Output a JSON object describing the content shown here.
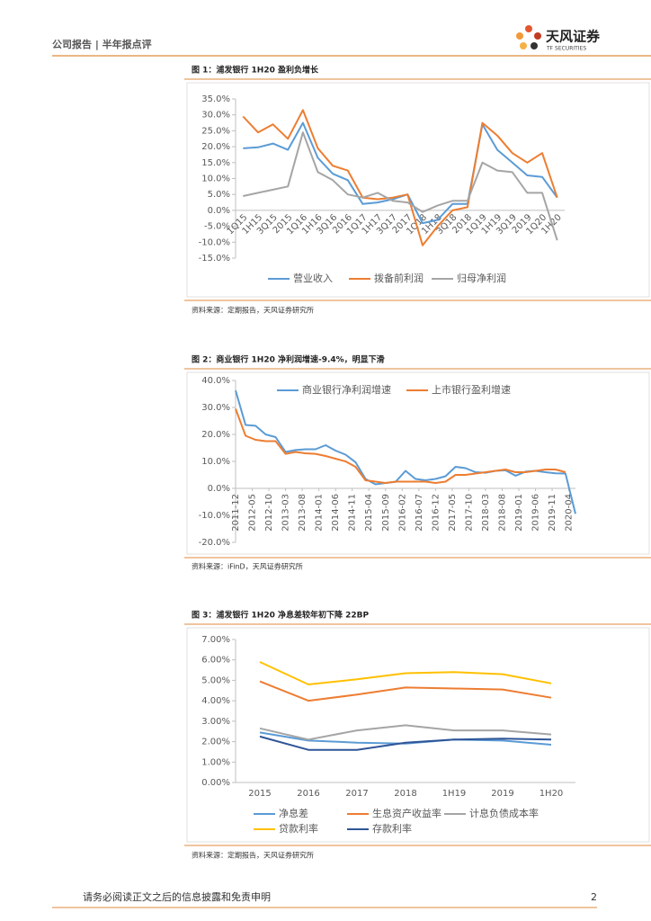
{
  "header": {
    "left": "公司报告 | 半年报点评",
    "brand": "天风证券",
    "brand_en": "TF SECURITIES"
  },
  "chart_data": [
    {
      "type": "line",
      "title": "图 1：浦发银行 1H20 盈利负增长",
      "source": "资料来源：定期报告，天风证券研究所",
      "categories": [
        "1Q15",
        "1H15",
        "3Q15",
        "2015",
        "1Q16",
        "1H16",
        "3Q16",
        "2016",
        "1Q17",
        "1H17",
        "3Q17",
        "2017",
        "1Q18",
        "1H18",
        "3Q18",
        "2018",
        "1Q19",
        "1H19",
        "3Q19",
        "2019",
        "1Q20",
        "1H20"
      ],
      "series": [
        {
          "name": "营业收入",
          "color": "#5b9bd5",
          "values": [
            19.5,
            19.8,
            21,
            19,
            27.5,
            16.5,
            11.5,
            9.5,
            2,
            2.5,
            3.5,
            5,
            -4,
            -3,
            2,
            2,
            27,
            19,
            15,
            11,
            10.5,
            4
          ]
        },
        {
          "name": "拨备前利润",
          "color": "#ed7d31",
          "values": [
            29.5,
            24.5,
            27,
            22.5,
            31.5,
            19.5,
            14,
            12.5,
            4,
            3.5,
            4,
            5,
            -11,
            -5,
            0,
            1,
            27.5,
            23.5,
            18,
            15,
            18,
            4
          ]
        },
        {
          "name": "归母净利润",
          "color": "#a5a5a5",
          "values": [
            4.5,
            5.5,
            6.5,
            7.5,
            24.5,
            12,
            9.5,
            5,
            4,
            5.5,
            3,
            2.5,
            -0.5,
            1.5,
            3,
            3,
            15,
            12.5,
            12,
            5.5,
            5.5,
            -9.4
          ]
        }
      ],
      "ylim": [
        -15,
        35
      ],
      "yticks": [
        {
          "value": -15,
          "label": "-15.0%"
        },
        {
          "value": -10,
          "label": "-10.0%"
        },
        {
          "value": -5,
          "label": "-5.0%"
        },
        {
          "value": 0,
          "label": "0.0%"
        },
        {
          "value": 5,
          "label": "5.0%"
        },
        {
          "value": 10,
          "label": "10.0%"
        },
        {
          "value": 15,
          "label": "15.0%"
        },
        {
          "value": 20,
          "label": "20.0%"
        },
        {
          "value": 25,
          "label": "25.0%"
        },
        {
          "value": 30,
          "label": "30.0%"
        },
        {
          "value": 35,
          "label": "35.0%"
        }
      ],
      "legend": "bottom",
      "grid": false
    },
    {
      "type": "line",
      "title": "图 2：商业银行 1H20 净利润增速-9.4%，明显下滑",
      "source": "资料来源：iFinD，天风证券研究所",
      "x": [
        "2011-12",
        "2012-03",
        "2012-06",
        "2012-09",
        "2012-12",
        "2013-03",
        "2013-06",
        "2013-09",
        "2013-12",
        "2014-03",
        "2014-06",
        "2014-09",
        "2014-12",
        "2015-03",
        "2015-06",
        "2015-09",
        "2015-12",
        "2016-03",
        "2016-06",
        "2016-09",
        "2016-12",
        "2017-03",
        "2017-06",
        "2017-09",
        "2017-12",
        "2018-03",
        "2018-06",
        "2018-09",
        "2018-12",
        "2019-03",
        "2019-06",
        "2019-09",
        "2019-12",
        "2020-03",
        "2020-06"
      ],
      "xlim": [
        "2011-12",
        "2020-06"
      ],
      "xticks": [
        "2011-12",
        "2012-05",
        "2012-10",
        "2013-03",
        "2013-08",
        "2014-01",
        "2014-06",
        "2014-11",
        "2015-04",
        "2015-09",
        "2016-02",
        "2016-07",
        "2016-12",
        "2017-05",
        "2017-10",
        "2018-03",
        "2018-08",
        "2019-01",
        "2019-06",
        "2019-11",
        "2020-04"
      ],
      "series": [
        {
          "name": "商业银行净利润增速",
          "color": "#5b9bd5",
          "values": [
            36.3,
            23.5,
            23.2,
            20,
            19,
            13.5,
            14.2,
            14.5,
            14.5,
            16,
            14,
            12.5,
            9.7,
            3.5,
            1.5,
            2,
            2.4,
            6.5,
            3.5,
            3,
            3.5,
            4.5,
            8,
            7.5,
            6,
            5.8,
            6.5,
            6.7,
            4.7,
            6.2,
            6.5,
            6,
            5.6,
            5.5,
            -9.4
          ]
        },
        {
          "name": "上市银行盈利增速",
          "color": "#ed7d31",
          "values": [
            29.5,
            19.5,
            18,
            17.5,
            17.5,
            12.8,
            13.5,
            13,
            12.8,
            12,
            11,
            10,
            8,
            3,
            2.5,
            2,
            2.5,
            2.5,
            2.5,
            2.5,
            2,
            2.5,
            5,
            5,
            5.5,
            6,
            6.5,
            7,
            6,
            6,
            6.5,
            7,
            7,
            6,
            null
          ]
        }
      ],
      "ylim": [
        -20,
        40
      ],
      "yticks": [
        {
          "value": -20,
          "label": "-20.0%"
        },
        {
          "value": -10,
          "label": "-10.0%"
        },
        {
          "value": 0,
          "label": "0.0%"
        },
        {
          "value": 10,
          "label": "10.0%"
        },
        {
          "value": 20,
          "label": "20.0%"
        },
        {
          "value": 30,
          "label": "30.0%"
        },
        {
          "value": 40,
          "label": "40.0%"
        }
      ],
      "legend": "top",
      "grid": false
    },
    {
      "type": "line",
      "title": "图 3：浦发银行 1H20 净息差较年初下降 22BP",
      "source": "资料来源：定期报告，天风证券研究所",
      "categories": [
        "2015",
        "2016",
        "2017",
        "2018",
        "1H19",
        "2019",
        "1H20"
      ],
      "series": [
        {
          "name": "净息差",
          "color": "#5b9bd5",
          "values": [
            2.45,
            2.05,
            1.95,
            1.9,
            2.1,
            2.05,
            1.85
          ]
        },
        {
          "name": "生息资产收益率",
          "color": "#ed7d31",
          "values": [
            4.95,
            4,
            4.3,
            4.65,
            4.6,
            4.55,
            4.15
          ]
        },
        {
          "name": "计息负债成本率",
          "color": "#a5a5a5",
          "values": [
            2.65,
            2.1,
            2.55,
            2.8,
            2.55,
            2.55,
            2.35
          ]
        },
        {
          "name": "贷款利率",
          "color": "#ffc000",
          "values": [
            5.9,
            4.8,
            5.05,
            5.35,
            5.4,
            5.3,
            4.85
          ]
        },
        {
          "name": "存款利率",
          "color": "#2f5597",
          "values": [
            2.25,
            1.6,
            1.6,
            1.95,
            2.1,
            2.15,
            2.1
          ]
        }
      ],
      "ylim": [
        0,
        7
      ],
      "yticks": [
        {
          "value": 0,
          "label": "0.00%"
        },
        {
          "value": 1,
          "label": "1.00%"
        },
        {
          "value": 2,
          "label": "2.00%"
        },
        {
          "value": 3,
          "label": "3.00%"
        },
        {
          "value": 4,
          "label": "4.00%"
        },
        {
          "value": 5,
          "label": "5.00%"
        },
        {
          "value": 6,
          "label": "6.00%"
        },
        {
          "value": 7,
          "label": "7.00%"
        }
      ],
      "legend": "bottom",
      "grid": false
    }
  ],
  "footer": {
    "disclaimer": "请务必阅读正文之后的信息披露和免责申明",
    "page": "2"
  }
}
